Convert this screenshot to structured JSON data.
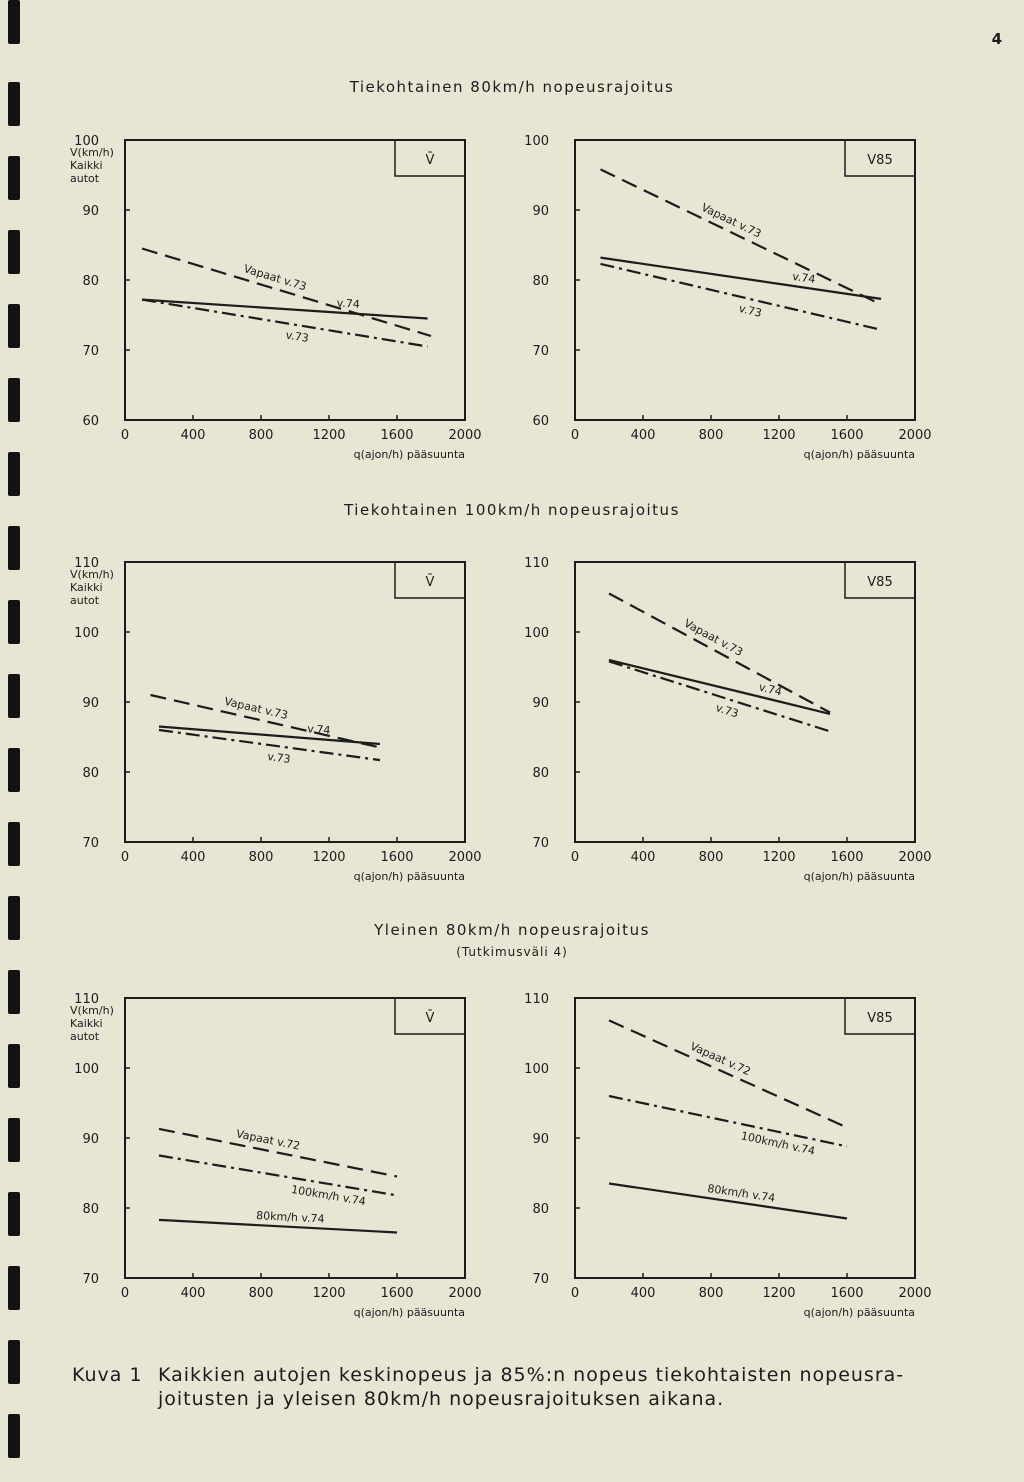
{
  "page_number": "4",
  "sections": [
    {
      "title": "Tiekohtainen 80km/h nopeusrajoitus",
      "subtitle": ""
    },
    {
      "title": "Tiekohtainen 100km/h nopeusrajoitus",
      "subtitle": ""
    },
    {
      "title": "Yleinen 80km/h nopeusrajoitus",
      "subtitle": "(Tutkimusväli 4)"
    }
  ],
  "caption": {
    "label": "Kuva 1",
    "line1": "Kaikkien autojen keskinopeus ja 85%:n nopeus tiekohtaisten nopeusra-",
    "line2": "joitusten ja yleisen 80km/h nopeusrajoituksen aikana."
  },
  "colors": {
    "ink": "#1c1c1c",
    "paper": "#e7e5d3"
  },
  "chart_data": [
    {
      "type": "line",
      "panel_label": "V̄",
      "title": "",
      "ylabel": "V(km/h) Kaikki autot",
      "xlabel": "q(ajon/h) pääsuunta",
      "xlim": [
        0,
        2000
      ],
      "ylim": [
        60,
        100
      ],
      "xticks": [
        "0",
        "400",
        "800",
        "1200",
        "1600",
        "2000"
      ],
      "yticks": [
        "60",
        "70",
        "80",
        "90",
        "100"
      ],
      "grid": false,
      "series": [
        {
          "name": "Vapaat v.73",
          "style": "dashed",
          "x": [
            100,
            1800
          ],
          "y": [
            84.5,
            72
          ]
        },
        {
          "name": "v.74",
          "style": "solid",
          "x": [
            100,
            1780
          ],
          "y": [
            77.2,
            74.5
          ]
        },
        {
          "name": "v.73",
          "style": "dashdot",
          "x": [
            100,
            1780
          ],
          "y": [
            77.2,
            70.5
          ]
        }
      ]
    },
    {
      "type": "line",
      "panel_label": "V85",
      "title": "",
      "ylabel": "",
      "xlabel": "q(ajon/h) pääsuunta",
      "xlim": [
        0,
        2000
      ],
      "ylim": [
        60,
        100
      ],
      "xticks": [
        "0",
        "400",
        "800",
        "1200",
        "1600",
        "2000"
      ],
      "yticks": [
        "60",
        "70",
        "80",
        "90",
        "100"
      ],
      "grid": false,
      "series": [
        {
          "name": "Vapaat v.73",
          "style": "dashed",
          "x": [
            150,
            1800
          ],
          "y": [
            95.8,
            76.5
          ]
        },
        {
          "name": "v.74",
          "style": "solid",
          "x": [
            150,
            1800
          ],
          "y": [
            83.2,
            77.3
          ]
        },
        {
          "name": "v.73",
          "style": "dashdot",
          "x": [
            150,
            1780
          ],
          "y": [
            82.3,
            73
          ]
        }
      ]
    },
    {
      "type": "line",
      "panel_label": "V̄",
      "title": "",
      "ylabel": "V(km/h) Kaikki autot",
      "xlabel": "q(ajon/h) pääsuunta",
      "xlim": [
        0,
        2000
      ],
      "ylim": [
        70,
        110
      ],
      "xticks": [
        "0",
        "400",
        "800",
        "1200",
        "1600",
        "2000"
      ],
      "yticks": [
        "70",
        "80",
        "90",
        "100",
        "110"
      ],
      "grid": false,
      "series": [
        {
          "name": "Vapaat v.73",
          "style": "dashed",
          "x": [
            150,
            1500
          ],
          "y": [
            91,
            83.5
          ]
        },
        {
          "name": "v.74",
          "style": "solid",
          "x": [
            200,
            1500
          ],
          "y": [
            86.5,
            84
          ]
        },
        {
          "name": "v.73",
          "style": "dashdot",
          "x": [
            200,
            1500
          ],
          "y": [
            86,
            81.7
          ]
        }
      ]
    },
    {
      "type": "line",
      "panel_label": "V85",
      "title": "",
      "ylabel": "",
      "xlabel": "q(ajon/h) pääsuunta",
      "xlim": [
        0,
        2000
      ],
      "ylim": [
        70,
        110
      ],
      "xticks": [
        "0",
        "400",
        "800",
        "1200",
        "1600",
        "2000"
      ],
      "yticks": [
        "70",
        "80",
        "90",
        "100",
        "110"
      ],
      "grid": false,
      "series": [
        {
          "name": "Vapaat v.73",
          "style": "dashed",
          "x": [
            200,
            1500
          ],
          "y": [
            105.5,
            88.5
          ]
        },
        {
          "name": "v.74",
          "style": "solid",
          "x": [
            200,
            1500
          ],
          "y": [
            96,
            88.3
          ]
        },
        {
          "name": "v.73",
          "style": "dashdot",
          "x": [
            200,
            1500
          ],
          "y": [
            95.8,
            85.8
          ]
        }
      ]
    },
    {
      "type": "line",
      "panel_label": "V̄",
      "title": "",
      "ylabel": "V(km/h) Kaikki autot",
      "xlabel": "q(ajon/h) pääsuunta",
      "xlim": [
        0,
        2000
      ],
      "ylim": [
        70,
        110
      ],
      "xticks": [
        "0",
        "400",
        "800",
        "1200",
        "1600",
        "2000"
      ],
      "yticks": [
        "70",
        "80",
        "90",
        "100",
        "110"
      ],
      "grid": false,
      "series": [
        {
          "name": "Vapaat v.72",
          "style": "dashed",
          "x": [
            200,
            1600
          ],
          "y": [
            91.3,
            84.5
          ]
        },
        {
          "name": "100km/h v.74",
          "style": "dashdot",
          "x": [
            200,
            1600
          ],
          "y": [
            87.5,
            81.8
          ]
        },
        {
          "name": "80km/h v.74",
          "style": "solid",
          "x": [
            200,
            1600
          ],
          "y": [
            78.3,
            76.5
          ]
        }
      ]
    },
    {
      "type": "line",
      "panel_label": "V85",
      "title": "",
      "ylabel": "",
      "xlabel": "q(ajon/h) pääsuunta",
      "xlim": [
        0,
        2000
      ],
      "ylim": [
        70,
        110
      ],
      "xticks": [
        "0",
        "400",
        "800",
        "1200",
        "1600",
        "2000"
      ],
      "yticks": [
        "70",
        "80",
        "90",
        "100",
        "110"
      ],
      "grid": false,
      "series": [
        {
          "name": "Vapaat v.72",
          "style": "dashed",
          "x": [
            200,
            1600
          ],
          "y": [
            106.8,
            91.5
          ]
        },
        {
          "name": "100km/h v.74",
          "style": "dashdot",
          "x": [
            200,
            1600
          ],
          "y": [
            96,
            88.8
          ]
        },
        {
          "name": "80km/h v.74",
          "style": "solid",
          "x": [
            200,
            1600
          ],
          "y": [
            83.5,
            78.5
          ]
        }
      ]
    }
  ]
}
